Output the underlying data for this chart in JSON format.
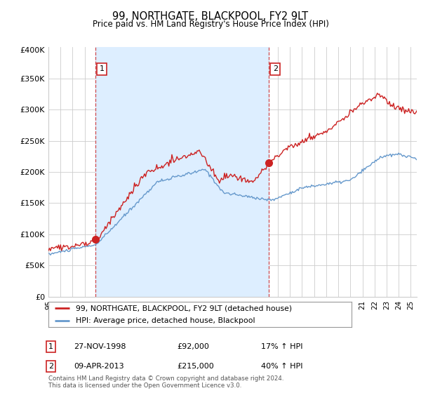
{
  "title": "99, NORTHGATE, BLACKPOOL, FY2 9LT",
  "subtitle": "Price paid vs. HM Land Registry's House Price Index (HPI)",
  "red_label": "99, NORTHGATE, BLACKPOOL, FY2 9LT (detached house)",
  "blue_label": "HPI: Average price, detached house, Blackpool",
  "annotation1_label": "1",
  "annotation1_date": "27-NOV-1998",
  "annotation1_price": "£92,000",
  "annotation1_hpi": "17% ↑ HPI",
  "annotation2_label": "2",
  "annotation2_date": "09-APR-2013",
  "annotation2_price": "£215,000",
  "annotation2_hpi": "40% ↑ HPI",
  "footer": "Contains HM Land Registry data © Crown copyright and database right 2024.\nThis data is licensed under the Open Government Licence v3.0.",
  "red_color": "#cc2222",
  "blue_color": "#6699cc",
  "shade_color": "#ddeeff",
  "background_color": "#ffffff",
  "grid_color": "#cccccc",
  "vline_color": "#cc2222",
  "ylim": [
    0,
    400000
  ],
  "yticks": [
    0,
    50000,
    100000,
    150000,
    200000,
    250000,
    300000,
    350000
  ],
  "ytick_labels": [
    "£0",
    "£50K",
    "£100K",
    "£150K",
    "£200K",
    "£250K",
    "£300K",
    "£350K"
  ],
  "marker1_x": 1998.92,
  "marker1_y": 92000,
  "marker2_x": 2013.27,
  "marker2_y": 215000,
  "vline1_x": 1998.92,
  "vline2_x": 2013.27,
  "xlim_start": 1995,
  "xlim_end": 2025.5
}
